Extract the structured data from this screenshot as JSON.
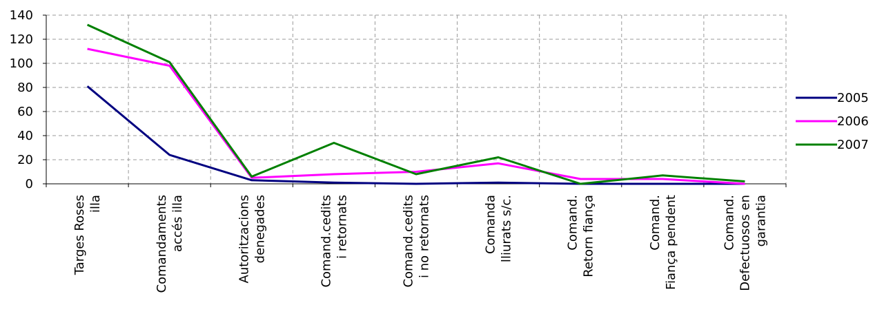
{
  "chart_data": {
    "type": "line",
    "title": "",
    "xlabel": "",
    "ylabel": "",
    "ylim": [
      0,
      140
    ],
    "yticks": [
      0,
      20,
      40,
      60,
      80,
      100,
      120,
      140
    ],
    "grid": true,
    "legend_position": "right",
    "categories": [
      [
        "Targes Roses",
        "illa"
      ],
      [
        "Comandaments",
        "accés illa"
      ],
      [
        "Autoritzacions",
        "denegades"
      ],
      [
        "Comand.cedits",
        "i retornats"
      ],
      [
        "Comand.cedits",
        "i no retornats"
      ],
      [
        "Comanda",
        "lliurats s/c."
      ],
      [
        "Comand.",
        "Retorn fiança"
      ],
      [
        "Comand.",
        "Fiança pendent"
      ],
      [
        "Comand.",
        "Defectuosos en",
        "garantia"
      ]
    ],
    "series": [
      {
        "name": "2005",
        "color": "#000080",
        "values": [
          81,
          24,
          3,
          1,
          0,
          1,
          0,
          0,
          0
        ]
      },
      {
        "name": "2006",
        "color": "#FF00FF",
        "values": [
          112,
          98,
          5,
          8,
          10,
          17,
          4,
          4,
          0
        ]
      },
      {
        "name": "2007",
        "color": "#008000",
        "values": [
          132,
          101,
          6,
          34,
          8,
          22,
          0,
          7,
          2
        ]
      }
    ]
  }
}
